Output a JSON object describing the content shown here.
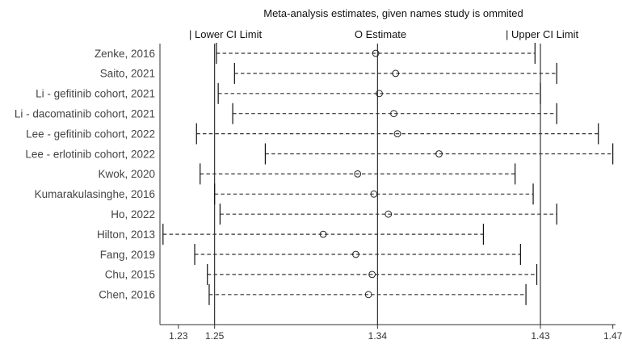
{
  "chart_data": {
    "type": "forest",
    "title": "Meta-analysis estimates, given names study is ommited",
    "header_labels": {
      "lower": "| Lower CI Limit",
      "estimate": "O Estimate",
      "upper": "| Upper CI Limit"
    },
    "reference_lines": [
      {
        "name": "Lower CI Limit",
        "value": 1.25
      },
      {
        "name": "Estimate",
        "value": 1.34
      },
      {
        "name": "Upper CI Limit",
        "value": 1.43
      }
    ],
    "xlim": [
      1.2198,
      1.4715
    ],
    "x_ticks": [
      1.23,
      1.25,
      1.34,
      1.43,
      1.47
    ],
    "x_tick_labels": [
      "1.23",
      "1.25",
      "1.34",
      "1.43",
      "1.47"
    ],
    "studies": [
      {
        "label": "Zenke, 2016",
        "lower": 1.251,
        "estimate": 1.339,
        "upper": 1.427
      },
      {
        "label": "Saito, 2021",
        "lower": 1.261,
        "estimate": 1.35,
        "upper": 1.439
      },
      {
        "label": "Li - gefitinib cohort, 2021",
        "lower": 1.252,
        "estimate": 1.341,
        "upper": 1.43
      },
      {
        "label": "Li - dacomatinib cohort, 2021",
        "lower": 1.26,
        "estimate": 1.349,
        "upper": 1.439
      },
      {
        "label": "Lee - gefitinib cohort, 2022",
        "lower": 1.24,
        "estimate": 1.351,
        "upper": 1.462
      },
      {
        "label": "Lee - erlotinib cohort, 2022",
        "lower": 1.278,
        "estimate": 1.374,
        "upper": 1.47
      },
      {
        "label": "Kwok, 2020",
        "lower": 1.242,
        "estimate": 1.329,
        "upper": 1.416
      },
      {
        "label": "Kumarakulasinghe, 2016",
        "lower": 1.25,
        "estimate": 1.338,
        "upper": 1.426
      },
      {
        "label": "Ho, 2022",
        "lower": 1.253,
        "estimate": 1.346,
        "upper": 1.439
      },
      {
        "label": "Hilton, 2013",
        "lower": 1.2215,
        "estimate": 1.31,
        "upper": 1.3985
      },
      {
        "label": "Fang, 2019",
        "lower": 1.239,
        "estimate": 1.328,
        "upper": 1.419
      },
      {
        "label": "Chu, 2015",
        "lower": 1.246,
        "estimate": 1.337,
        "upper": 1.428
      },
      {
        "label": "Chen, 2016",
        "lower": 1.247,
        "estimate": 1.335,
        "upper": 1.422
      }
    ]
  }
}
